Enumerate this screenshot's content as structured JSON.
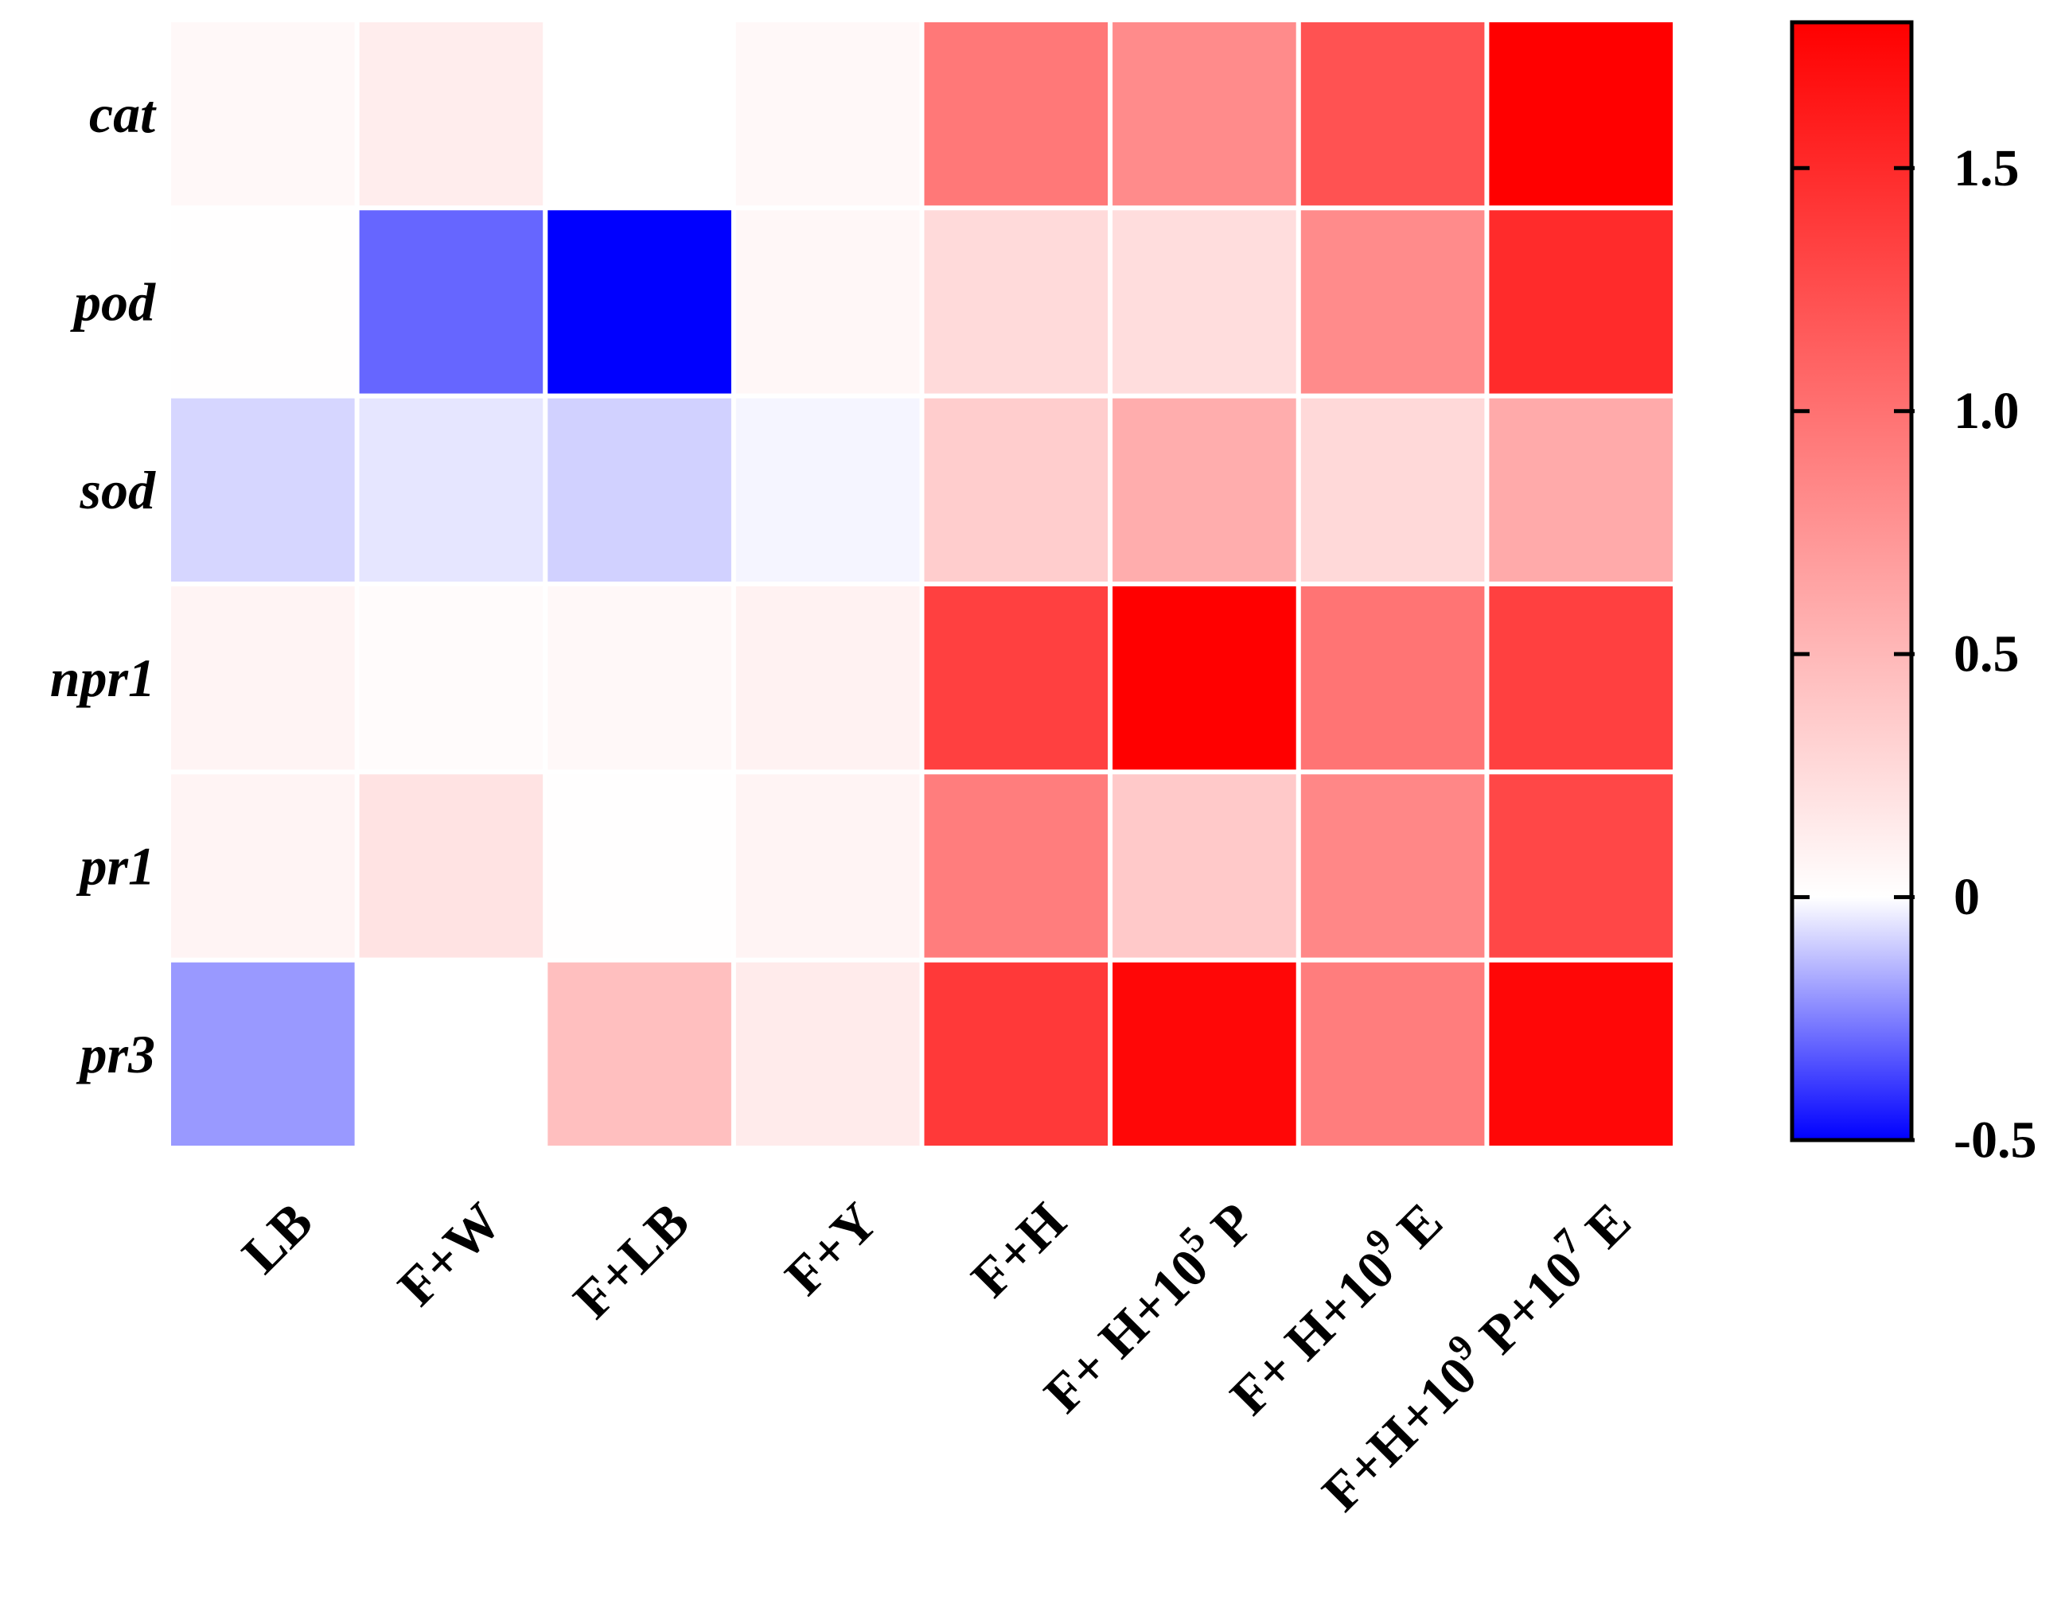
{
  "chart_data": {
    "type": "heatmap",
    "rows": [
      "cat",
      "pod",
      "sod",
      "npr1",
      "pr1",
      "pr3"
    ],
    "columns": [
      {
        "main": "LB"
      },
      {
        "main": "F+W"
      },
      {
        "main": "F+LB"
      },
      {
        "main": "F+Y"
      },
      {
        "main": "F+H"
      },
      {
        "pre": "F+ H+10",
        "sup": "5",
        "post": " P"
      },
      {
        "pre": "F+ H+10",
        "sup": "9",
        "post": " E"
      },
      {
        "pre": "F+H+10",
        "sup": "9",
        "post": " P+10",
        "sup2": "7",
        "post2": " E"
      }
    ],
    "values": [
      [
        0.05,
        0.13,
        0.0,
        0.05,
        0.95,
        0.82,
        1.22,
        1.8
      ],
      [
        0.01,
        -0.3,
        -0.58,
        0.06,
        0.26,
        0.24,
        0.82,
        1.5
      ],
      [
        -0.08,
        -0.05,
        -0.09,
        -0.02,
        0.35,
        0.58,
        0.27,
        0.6
      ],
      [
        0.08,
        0.03,
        0.05,
        0.09,
        1.35,
        1.85,
        0.98,
        1.35
      ],
      [
        0.08,
        0.2,
        0.01,
        0.08,
        0.92,
        0.38,
        0.85,
        1.3
      ],
      [
        -0.2,
        0.0,
        0.45,
        0.14,
        1.4,
        1.75,
        0.92,
        1.75
      ]
    ],
    "colorbar": {
      "min": -0.5,
      "max": 1.8,
      "ticks": [
        -0.5,
        0,
        0.5,
        1.0,
        1.5
      ],
      "tick_labels": [
        "-0.5",
        "0",
        "0.5",
        "1.0",
        "1.5"
      ],
      "colors": {
        "low": "#0000ff",
        "mid": "#ffffff",
        "high": "#ff0000"
      },
      "mid_value": 0
    },
    "colors": {
      "cell_border": "#ffffff",
      "frame": "#000000"
    },
    "title": "",
    "xlabel": "",
    "ylabel": ""
  }
}
